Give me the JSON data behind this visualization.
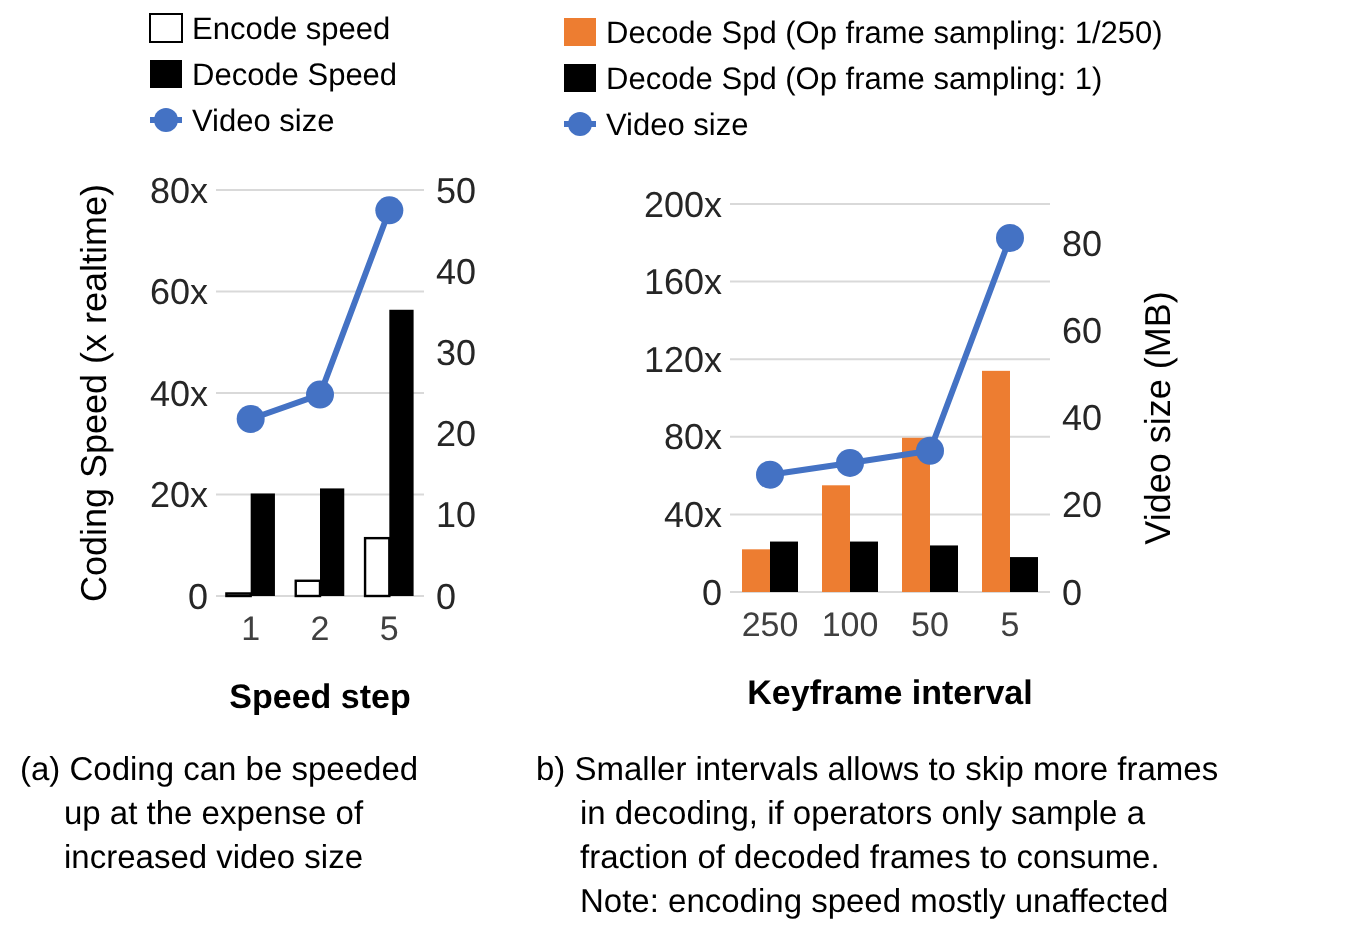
{
  "chart_data": [
    {
      "type": "bar",
      "categories": [
        "1",
        "2",
        "5"
      ],
      "xlabel": "Speed step",
      "ylabel": "Coding Speed (x realtime)",
      "ylim": [
        0,
        80
      ],
      "yticks": [
        0,
        {
          "value": 20,
          "label": "20x"
        },
        {
          "value": 40,
          "label": "40x"
        },
        {
          "value": 60,
          "label": "60x"
        },
        {
          "value": 80,
          "label": "80x"
        }
      ],
      "y2lim": [
        0,
        50
      ],
      "y2ticks": [
        0,
        10,
        20,
        30,
        40,
        50
      ],
      "grid": "y",
      "legend": "top",
      "marker": "circle",
      "series": [
        {
          "name": "Encode speed",
          "color": "#ffffff",
          "values": [
            0.5,
            3,
            11.4
          ]
        },
        {
          "name": "Decode Speed",
          "color": "#000000",
          "values": [
            20.2,
            21.2,
            56.4
          ]
        },
        {
          "name": "Video size",
          "type": "line",
          "axis": "y2",
          "color": "#4472c4",
          "values": [
            21.8,
            24.8,
            47.5
          ]
        }
      ],
      "annotations": [
        "(a) Coding can be speeded\nup at the expense of\nincreased video size"
      ]
    },
    {
      "type": "bar",
      "categories": [
        "250",
        "100",
        "50",
        "5"
      ],
      "xlabel": "Keyframe interval",
      "y2label": "Video size (MB)",
      "ylim": [
        0,
        200
      ],
      "yticks": [
        0,
        {
          "value": 40,
          "label": "40x"
        },
        {
          "value": 80,
          "label": "80x"
        },
        {
          "value": 120,
          "label": "120x"
        },
        {
          "value": 160,
          "label": "160x"
        },
        {
          "value": 200,
          "label": "200x"
        }
      ],
      "y2lim": [
        0,
        89
      ],
      "y2ticks": [
        0,
        20,
        40,
        60,
        80
      ],
      "grid": "y",
      "legend": "top",
      "marker": "circle",
      "series": [
        {
          "name": "Decode Spd (Op frame sampling: 1/250)",
          "color": "#ed7d31",
          "values": [
            22,
            55,
            79.5,
            114
          ]
        },
        {
          "name": "Decode Spd (Op frame sampling: 1)",
          "color": "#000000",
          "values": [
            26,
            26,
            24,
            18
          ]
        },
        {
          "name": "Video size",
          "type": "line",
          "axis": "y2",
          "color": "#4472c4",
          "values": [
            26.9,
            29.6,
            32.4,
            81.2
          ]
        }
      ],
      "annotations": [
        "b) Smaller intervals allows to skip more frames\nin decoding, if operators only sample a\nfraction of decoded frames to consume.\nNote: encoding speed mostly unaffected"
      ]
    }
  ]
}
